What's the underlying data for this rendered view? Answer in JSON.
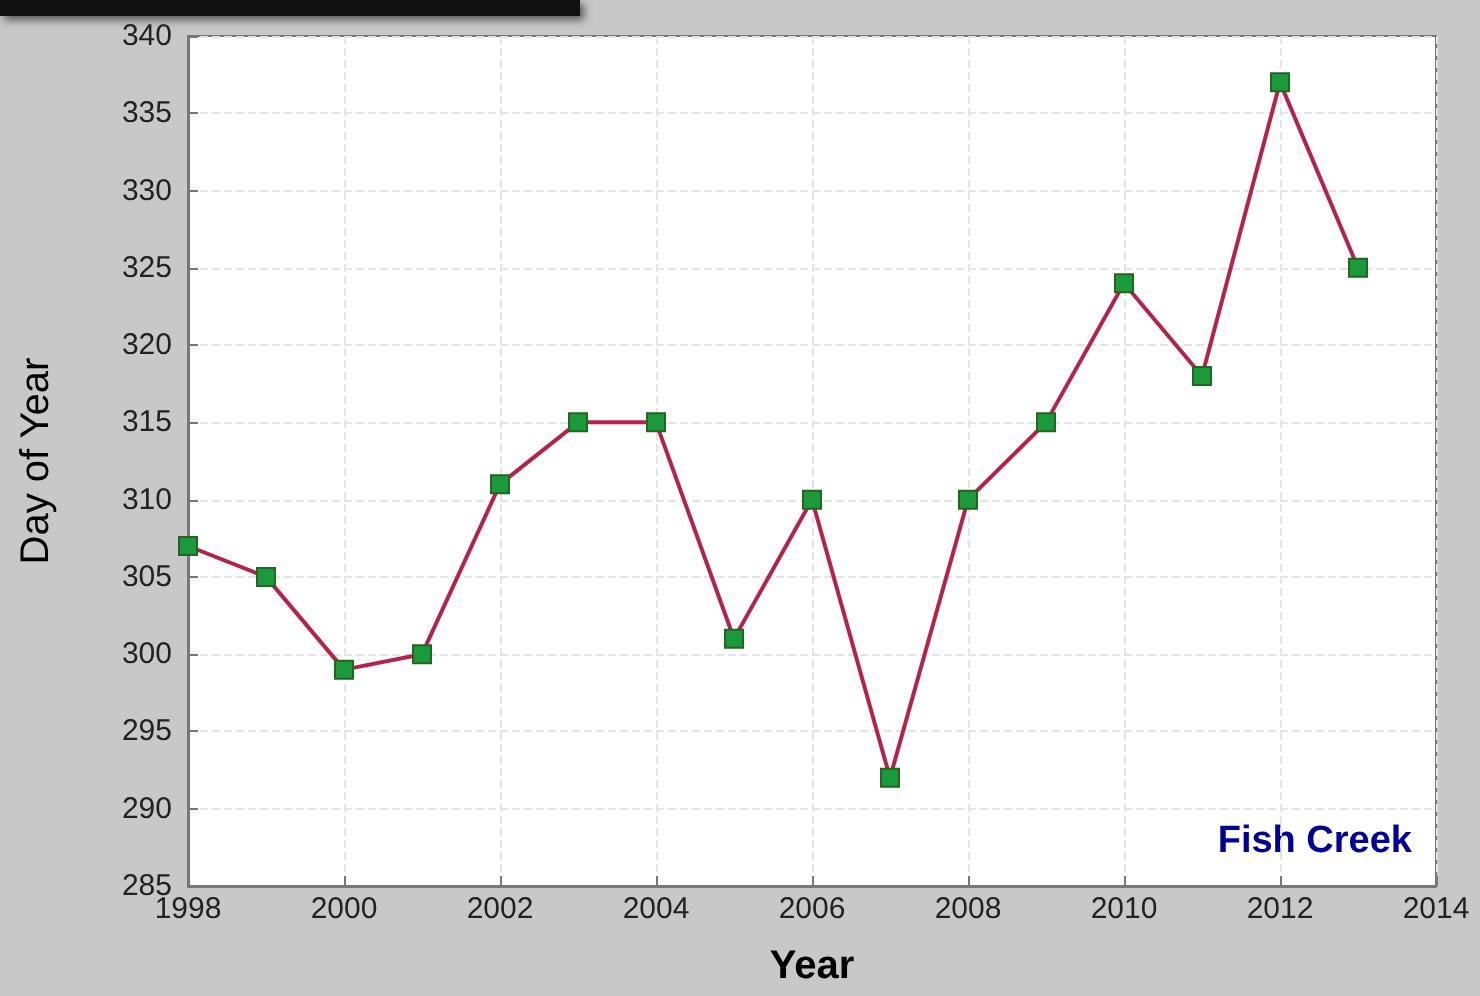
{
  "chart_data": {
    "type": "line",
    "xlabel": "Year",
    "ylabel": "Day of Year",
    "annotations": [
      "Fish Creek"
    ],
    "x": [
      1998,
      1999,
      2000,
      2001,
      2002,
      2003,
      2004,
      2005,
      2006,
      2007,
      2008,
      2009,
      2010,
      2011,
      2012,
      2013
    ],
    "series": [
      {
        "color": "#b5224a",
        "values": [
          307,
          305,
          299,
          300,
          311,
          315,
          315,
          301,
          310,
          292,
          310,
          315,
          324,
          318,
          337,
          325
        ]
      }
    ],
    "xlim": [
      1998,
      2014
    ],
    "xticks": [
      1998,
      2000,
      2002,
      2004,
      2006,
      2008,
      2010,
      2012,
      2014
    ],
    "ylim": [
      285,
      340
    ],
    "yticks": [
      285,
      290,
      295,
      300,
      305,
      310,
      315,
      320,
      325,
      330,
      335,
      340
    ],
    "grid": true,
    "marker": "square",
    "line_style": "solid"
  }
}
